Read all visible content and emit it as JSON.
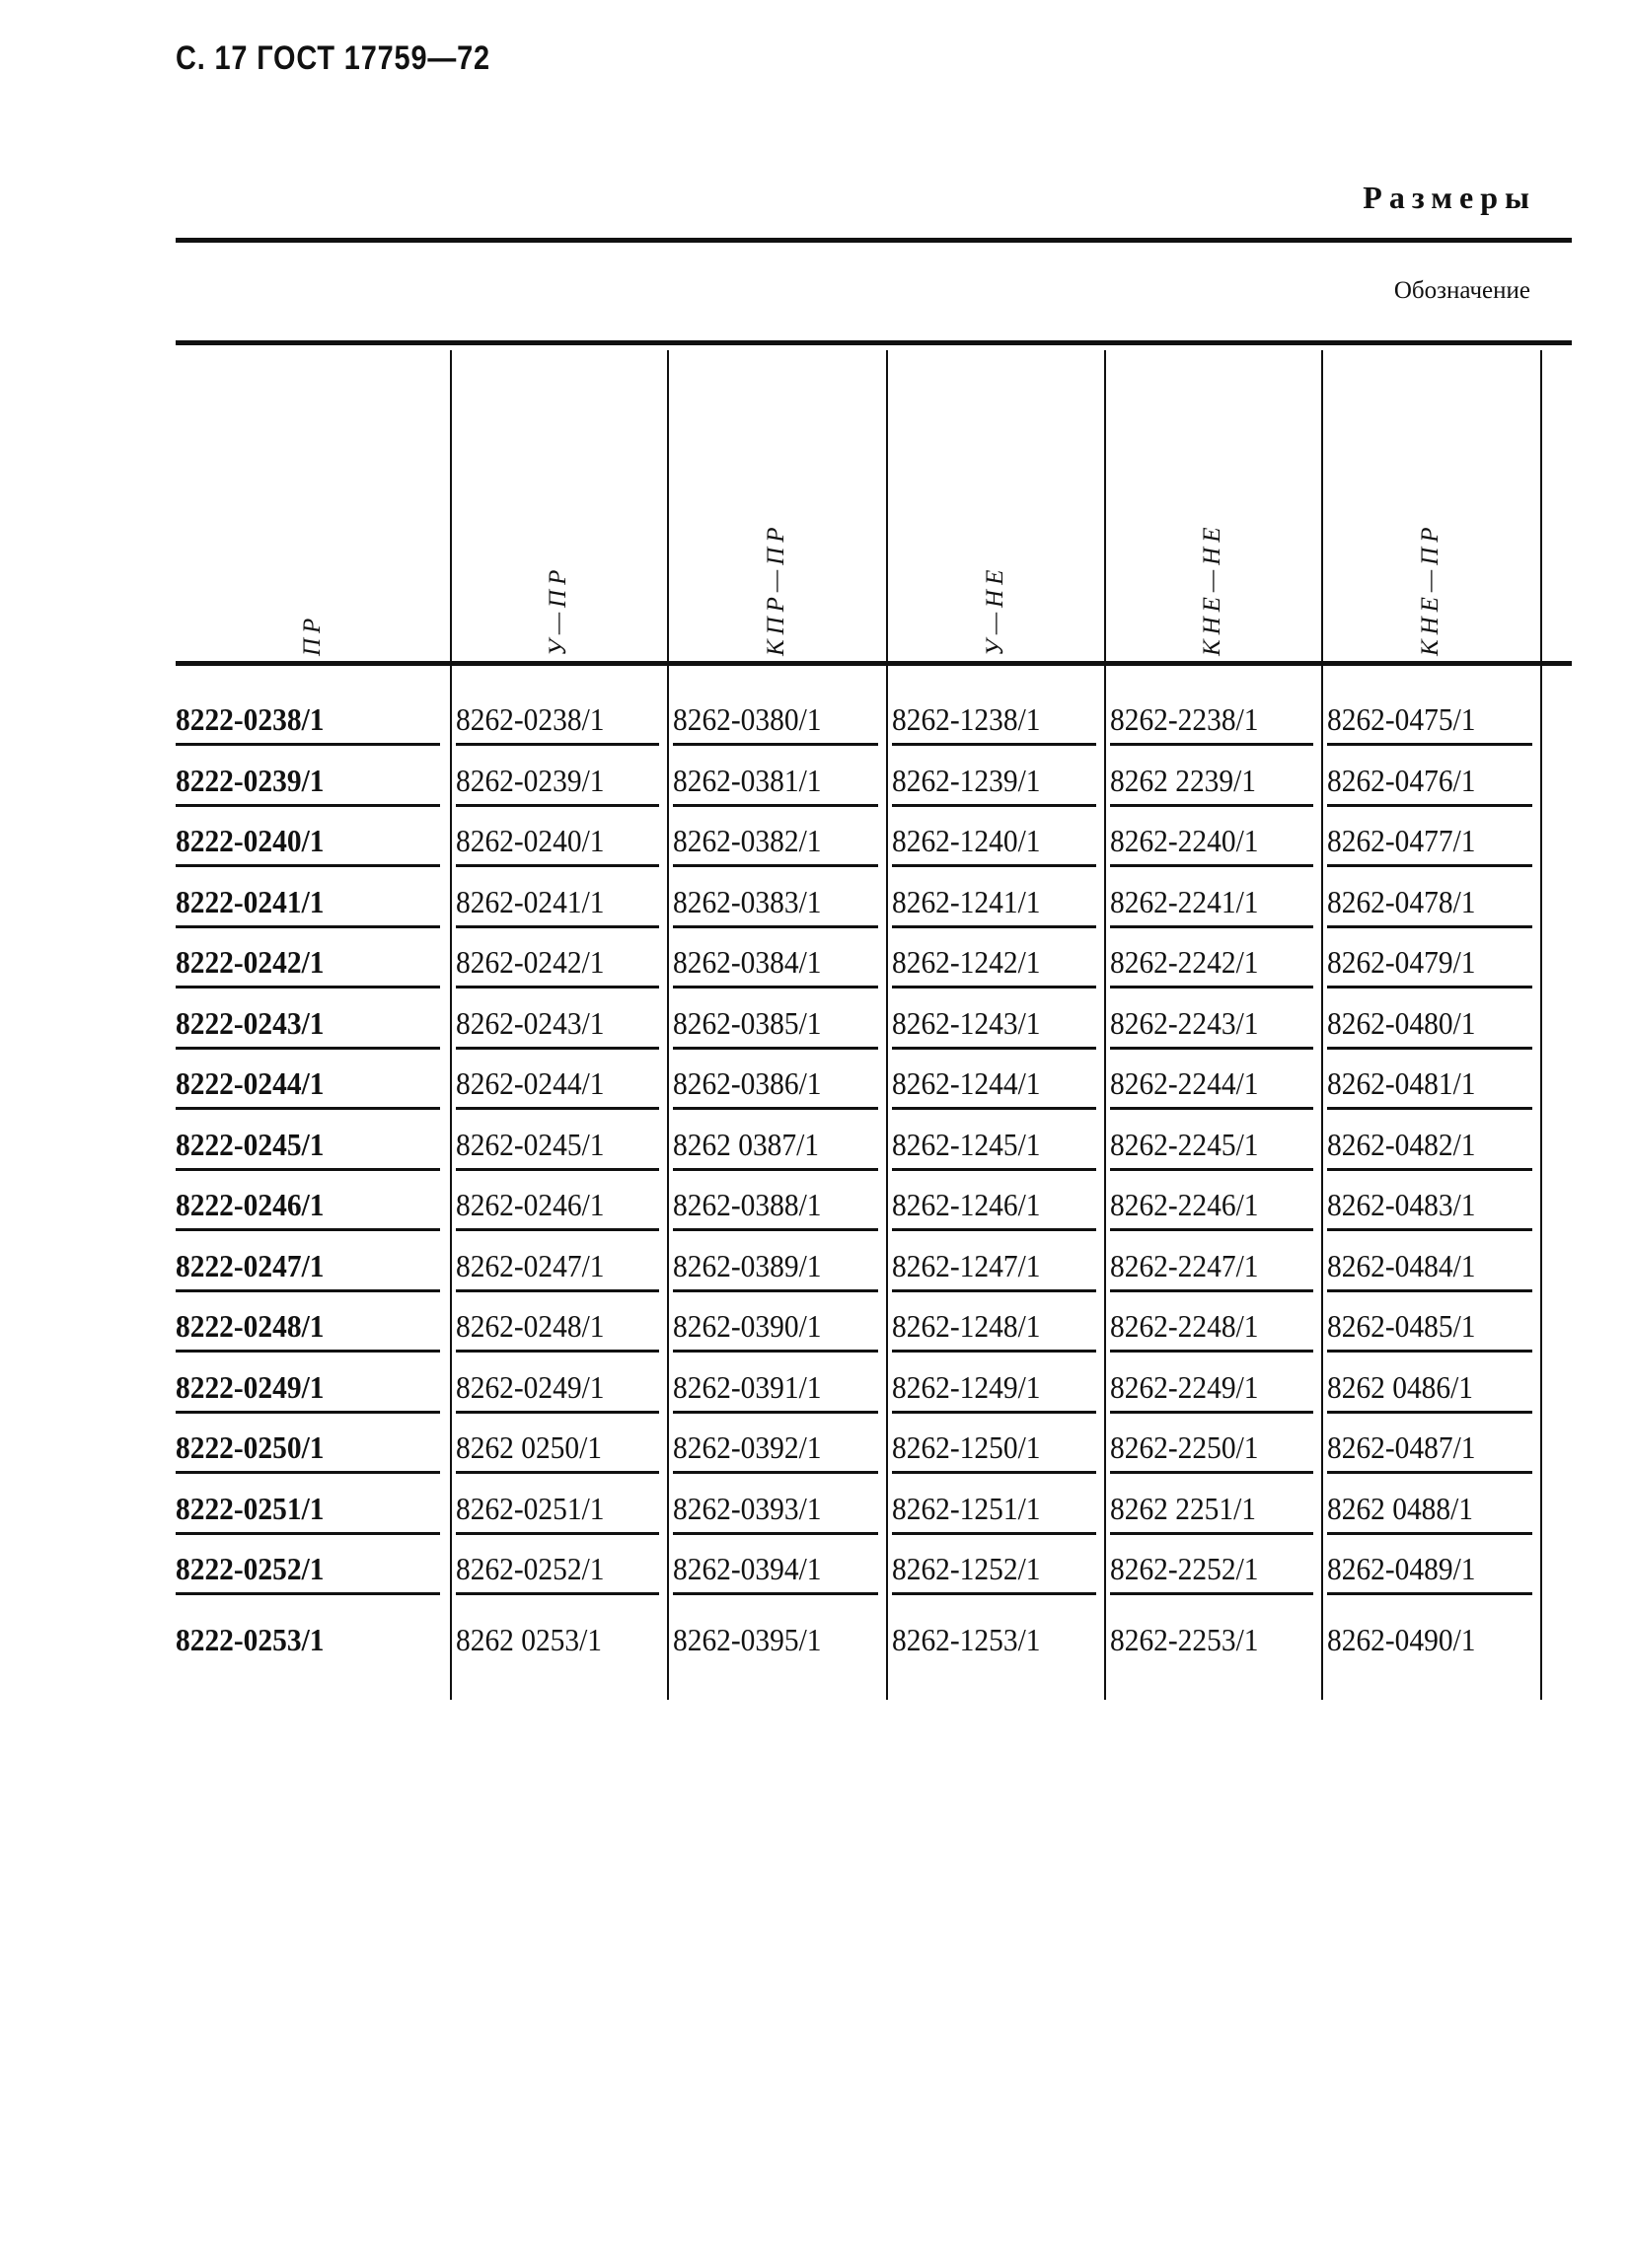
{
  "header": {
    "page_title": "С. 17 ГОСТ 17759—72",
    "section_title": "Размеры",
    "subheader": "Обозначение"
  },
  "table": {
    "columns": [
      "ПР",
      "У—ПР",
      "КПР—ПР",
      "У—НЕ",
      "КНЕ—НЕ",
      "КНЕ—ПР"
    ],
    "rows": [
      [
        "8222-0238/1",
        "8262-0238/1",
        "8262-0380/1",
        "8262-1238/1",
        "8262-2238/1",
        "8262-0475/1"
      ],
      [
        "8222-0239/1",
        "8262-0239/1",
        "8262-0381/1",
        "8262-1239/1",
        "8262 2239/1",
        "8262-0476/1"
      ],
      [
        "8222-0240/1",
        "8262-0240/1",
        "8262-0382/1",
        "8262-1240/1",
        "8262-2240/1",
        "8262-0477/1"
      ],
      [
        "8222-0241/1",
        "8262-0241/1",
        "8262-0383/1",
        "8262-1241/1",
        "8262-2241/1",
        "8262-0478/1"
      ],
      [
        "8222-0242/1",
        "8262-0242/1",
        "8262-0384/1",
        "8262-1242/1",
        "8262-2242/1",
        "8262-0479/1"
      ],
      [
        "8222-0243/1",
        "8262-0243/1",
        "8262-0385/1",
        "8262-1243/1",
        "8262-2243/1",
        "8262-0480/1"
      ],
      [
        "8222-0244/1",
        "8262-0244/1",
        "8262-0386/1",
        "8262-1244/1",
        "8262-2244/1",
        "8262-0481/1"
      ],
      [
        "8222-0245/1",
        "8262-0245/1",
        "8262 0387/1",
        "8262-1245/1",
        "8262-2245/1",
        "8262-0482/1"
      ],
      [
        "8222-0246/1",
        "8262-0246/1",
        "8262-0388/1",
        "8262-1246/1",
        "8262-2246/1",
        "8262-0483/1"
      ],
      [
        "8222-0247/1",
        "8262-0247/1",
        "8262-0389/1",
        "8262-1247/1",
        "8262-2247/1",
        "8262-0484/1"
      ],
      [
        "8222-0248/1",
        "8262-0248/1",
        "8262-0390/1",
        "8262-1248/1",
        "8262-2248/1",
        "8262-0485/1"
      ],
      [
        "8222-0249/1",
        "8262-0249/1",
        "8262-0391/1",
        "8262-1249/1",
        "8262-2249/1",
        "8262 0486/1"
      ],
      [
        "8222-0250/1",
        "8262 0250/1",
        "8262-0392/1",
        "8262-1250/1",
        "8262-2250/1",
        "8262-0487/1"
      ],
      [
        "8222-0251/1",
        "8262-0251/1",
        "8262-0393/1",
        "8262-1251/1",
        "8262 2251/1",
        "8262 0488/1"
      ],
      [
        "8222-0252/1",
        "8262-0252/1",
        "8262-0394/1",
        "8262-1252/1",
        "8262-2252/1",
        "8262-0489/1"
      ],
      [
        "8222-0253/1",
        "8262 0253/1",
        "8262-0395/1",
        "8262-1253/1",
        "8262-2253/1",
        "8262-0490/1"
      ]
    ]
  }
}
